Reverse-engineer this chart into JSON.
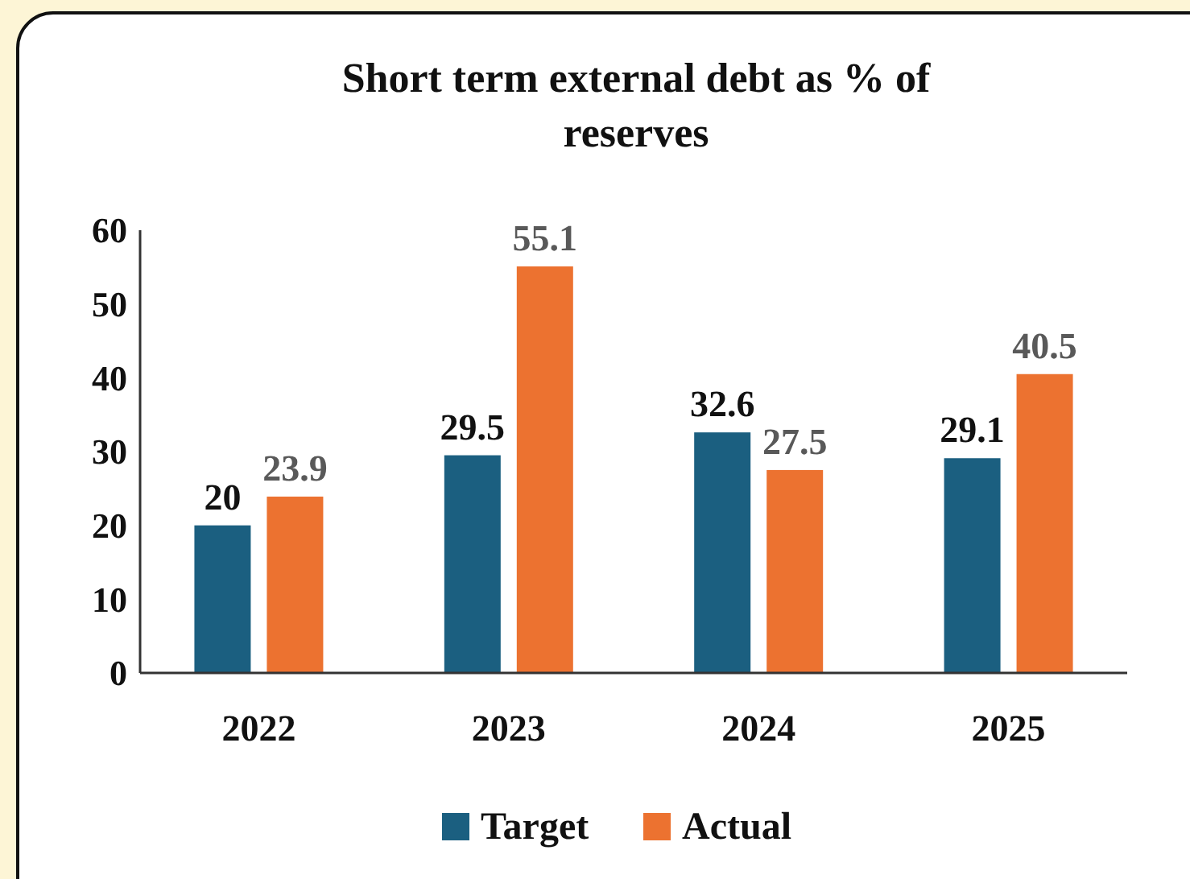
{
  "chart_data": {
    "type": "bar",
    "title": "Short term external debt as % of reserves",
    "categories": [
      "2022",
      "2023",
      "2024",
      "2025"
    ],
    "series": [
      {
        "name": "Target",
        "color": "#1b5f80",
        "values": [
          20,
          29.5,
          32.6,
          29.1
        ]
      },
      {
        "name": "Actual",
        "color": "#ec7230",
        "values": [
          23.9,
          55.1,
          27.5,
          40.5
        ]
      }
    ],
    "ylim": [
      0,
      60
    ],
    "yticks": [
      0,
      10,
      20,
      30,
      40,
      50,
      60
    ],
    "grid": false,
    "legend": "bottom",
    "data_labels": true
  }
}
